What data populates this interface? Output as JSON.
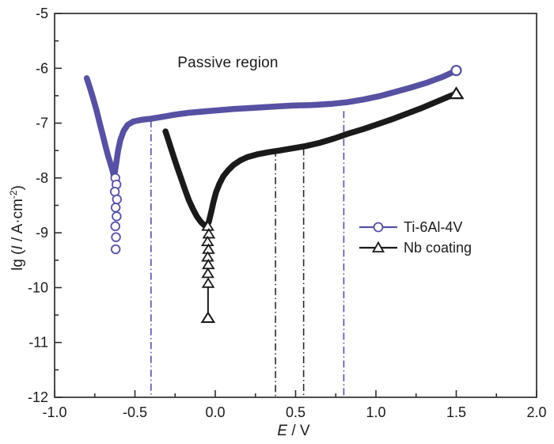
{
  "figure": {
    "xlabel": {
      "italic": "E",
      "rest": " / V"
    },
    "ylabel": {
      "pre": "lg (",
      "italic": "I",
      "mid": " / A·cm",
      "sup": "-2",
      "post": ")"
    }
  },
  "legend": {
    "items": [
      {
        "label": "Ti-6Al-4V",
        "color": "#5651a2",
        "marker": "circle"
      },
      {
        "label": "Nb coating",
        "color": "#1a1a1a",
        "marker": "triangle"
      }
    ]
  },
  "chart_data": {
    "type": "line",
    "xlabel": "E / V",
    "ylabel": "lg (I / A·cm^-2)",
    "xlim": [
      -1.0,
      2.0
    ],
    "ylim": [
      -12,
      -5
    ],
    "grid": false,
    "legend_position": "center-right",
    "axis_color": "#2e2e2e",
    "x_ticks": {
      "major_values": [
        -1.0,
        -0.5,
        0.0,
        0.5,
        1.0,
        1.5,
        2.0
      ],
      "major_labels": [
        "-1.0",
        "-0.5",
        "0.0",
        "0.5",
        "1.0",
        "1.5",
        "2.0"
      ],
      "minor_step": 0.25
    },
    "y_ticks": {
      "major_values": [
        -12,
        -11,
        -10,
        -9,
        -8,
        -7,
        -6,
        -5
      ],
      "major_labels": [
        "-12",
        "-11",
        "-10",
        "-9",
        "-8",
        "-7",
        "-6",
        "-5"
      ],
      "minor_step": 0.5
    },
    "annotation": {
      "text": "Passive region",
      "x": 0.075,
      "y": -5.9
    },
    "series": [
      {
        "name": "Ti-6Al-4V",
        "color": "#5651a2",
        "marker": "circle",
        "corrosion_potential": -0.63,
        "points": [
          [
            -0.8,
            -6.18
          ],
          [
            -0.78,
            -6.36
          ],
          [
            -0.76,
            -6.55
          ],
          [
            -0.74,
            -6.76
          ],
          [
            -0.72,
            -6.99
          ],
          [
            -0.7,
            -7.22
          ],
          [
            -0.68,
            -7.46
          ],
          [
            -0.665,
            -7.62
          ],
          [
            -0.65,
            -7.76
          ],
          [
            -0.64,
            -7.86
          ],
          [
            -0.632,
            -7.96
          ],
          [
            -0.624,
            -7.88
          ],
          [
            -0.615,
            -7.7
          ],
          [
            -0.605,
            -7.5
          ],
          [
            -0.59,
            -7.3
          ],
          [
            -0.57,
            -7.14
          ],
          [
            -0.545,
            -7.03
          ],
          [
            -0.51,
            -6.97
          ],
          [
            -0.46,
            -6.94
          ],
          [
            -0.4,
            -6.92
          ],
          [
            -0.32,
            -6.88
          ],
          [
            -0.24,
            -6.84
          ],
          [
            -0.16,
            -6.81
          ],
          [
            -0.08,
            -6.79
          ],
          [
            0.0,
            -6.77
          ],
          [
            0.12,
            -6.74
          ],
          [
            0.24,
            -6.72
          ],
          [
            0.36,
            -6.7
          ],
          [
            0.48,
            -6.68
          ],
          [
            0.6,
            -6.67
          ],
          [
            0.72,
            -6.65
          ],
          [
            0.82,
            -6.62
          ],
          [
            0.92,
            -6.57
          ],
          [
            1.02,
            -6.51
          ],
          [
            1.12,
            -6.43
          ],
          [
            1.22,
            -6.35
          ],
          [
            1.32,
            -6.26
          ],
          [
            1.42,
            -6.15
          ],
          [
            1.5,
            -6.04
          ]
        ],
        "chain_markers": [
          [
            -0.622,
            -8.0
          ],
          [
            -0.615,
            -8.12
          ],
          [
            -0.625,
            -8.25
          ],
          [
            -0.612,
            -8.39
          ],
          [
            -0.62,
            -8.54
          ],
          [
            -0.614,
            -8.7
          ],
          [
            -0.622,
            -8.88
          ],
          [
            -0.618,
            -9.08
          ],
          [
            -0.62,
            -9.3
          ]
        ],
        "stem": null,
        "end_marker": [
          1.5,
          -6.04
        ]
      },
      {
        "name": "Nb coating",
        "color": "#1a1a1a",
        "marker": "triangle",
        "corrosion_potential": -0.05,
        "points": [
          [
            -0.31,
            -7.15
          ],
          [
            -0.295,
            -7.28
          ],
          [
            -0.28,
            -7.42
          ],
          [
            -0.26,
            -7.6
          ],
          [
            -0.24,
            -7.78
          ],
          [
            -0.215,
            -7.99
          ],
          [
            -0.19,
            -8.2
          ],
          [
            -0.165,
            -8.4
          ],
          [
            -0.14,
            -8.56
          ],
          [
            -0.115,
            -8.7
          ],
          [
            -0.09,
            -8.8
          ],
          [
            -0.07,
            -8.86
          ],
          [
            -0.055,
            -8.88
          ],
          [
            -0.04,
            -8.8
          ],
          [
            -0.025,
            -8.62
          ],
          [
            -0.01,
            -8.42
          ],
          [
            0.005,
            -8.26
          ],
          [
            0.025,
            -8.11
          ],
          [
            0.05,
            -7.97
          ],
          [
            0.08,
            -7.86
          ],
          [
            0.115,
            -7.76
          ],
          [
            0.155,
            -7.68
          ],
          [
            0.2,
            -7.62
          ],
          [
            0.26,
            -7.57
          ],
          [
            0.33,
            -7.53
          ],
          [
            0.4,
            -7.5
          ],
          [
            0.48,
            -7.46
          ],
          [
            0.56,
            -7.42
          ],
          [
            0.65,
            -7.36
          ],
          [
            0.74,
            -7.28
          ],
          [
            0.83,
            -7.19
          ],
          [
            0.92,
            -7.11
          ],
          [
            1.01,
            -7.02
          ],
          [
            1.1,
            -6.93
          ],
          [
            1.19,
            -6.83
          ],
          [
            1.28,
            -6.73
          ],
          [
            1.37,
            -6.62
          ],
          [
            1.45,
            -6.52
          ],
          [
            1.5,
            -6.46
          ]
        ],
        "chain_markers": [
          [
            -0.046,
            -8.88
          ],
          [
            -0.04,
            -9.02
          ],
          [
            -0.048,
            -9.16
          ],
          [
            -0.042,
            -9.3
          ],
          [
            -0.047,
            -9.44
          ],
          [
            -0.043,
            -9.58
          ],
          [
            -0.046,
            -9.74
          ],
          [
            -0.044,
            -9.92
          ]
        ],
        "stem": {
          "from": [
            -0.045,
            -9.92
          ],
          "to": [
            -0.045,
            -10.45
          ]
        },
        "isolated_marker": [
          -0.045,
          -10.55
        ],
        "end_marker": [
          1.5,
          -6.46
        ]
      }
    ],
    "vlines": [
      {
        "x": -0.4,
        "top": -6.95,
        "color": "#5651a2"
      },
      {
        "x": 0.375,
        "top": -7.48,
        "color": "#2a2a2a"
      },
      {
        "x": 0.55,
        "top": -7.46,
        "color": "#2a2a2a"
      },
      {
        "x": 0.8,
        "top": -6.78,
        "color": "#5651a2"
      }
    ]
  }
}
